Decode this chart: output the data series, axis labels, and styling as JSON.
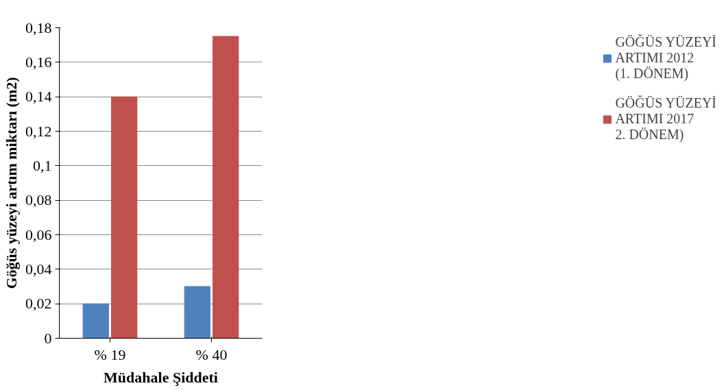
{
  "chart_data": {
    "type": "bar",
    "categories": [
      "% 19",
      "% 40"
    ],
    "xlabel": "Müdahale Şiddeti",
    "ylabel": "Göğüs yüzeyi artım miktarı (m2)",
    "series": [
      {
        "name": "GÖĞÜS YÜZEYİ ARTIMI 2012 (1. DÖNEM)",
        "color": "#4f81bd",
        "values": [
          0.02,
          0.03
        ]
      },
      {
        "name": "GÖĞÜS YÜZEYİ ARTIMI 2017 2. DÖNEM)",
        "color": "#c0504d",
        "values": [
          0.14,
          0.175
        ]
      }
    ],
    "ylim": [
      0,
      0.18
    ],
    "yticks": [
      0,
      {
        "value": 0.02,
        "label": "0,02"
      },
      {
        "value": 0.04,
        "label": "0,04"
      },
      {
        "value": 0.06,
        "label": "0,06"
      },
      {
        "value": 0.08,
        "label": "0,08"
      },
      {
        "value": 0.1,
        "label": "0,1"
      },
      {
        "value": 0.12,
        "label": "0,12"
      },
      {
        "value": 0.14,
        "label": "0,14"
      },
      {
        "value": 0.16,
        "label": "0,16"
      },
      {
        "value": 0.18,
        "label": "0,18"
      }
    ],
    "grid": "y",
    "legend": "right"
  }
}
